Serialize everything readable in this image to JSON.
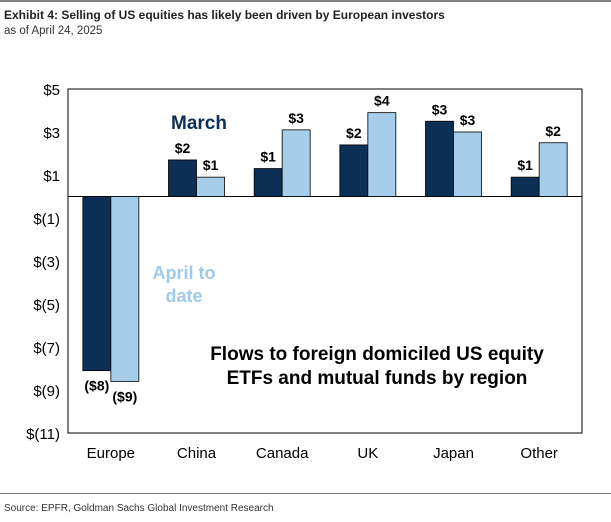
{
  "header": {
    "title": "Exhibit 4: Selling of US equities has likely been driven by European investors",
    "subtitle": "as of April 24, 2025"
  },
  "footer": {
    "source": "Source: EPFR, Goldman Sachs Global Investment Research"
  },
  "colors": {
    "march": "#0b2f55",
    "april": "#a6cdea",
    "march_label": "#0b2f55",
    "april_label": "#9fcaea"
  },
  "chart_data": {
    "type": "bar",
    "title": "Flows to foreign domiciled US equity ETFs and mutual funds by region",
    "title_lines": [
      "Flows to foreign domiciled US equity",
      "ETFs and mutual funds by region"
    ],
    "categories": [
      "Europe",
      "China",
      "Canada",
      "UK",
      "Japan",
      "Other"
    ],
    "series": [
      {
        "name": "March",
        "values": [
          -8.1,
          1.7,
          1.3,
          2.4,
          3.5,
          0.9
        ],
        "labels": [
          "($8)",
          "$2",
          "$1",
          "$2",
          "$3",
          "$1"
        ]
      },
      {
        "name": "April to date",
        "values": [
          -8.6,
          0.9,
          3.1,
          3.9,
          3.0,
          2.5
        ],
        "labels": [
          "($9)",
          "$1",
          "$3",
          "$4",
          "$3",
          "$2"
        ]
      }
    ],
    "legend_lines": {
      "march": [
        "March"
      ],
      "april": [
        "April to",
        "date"
      ]
    },
    "ylim": [
      -11,
      5
    ],
    "yticks": [
      5,
      3,
      1,
      -1,
      -3,
      -5,
      -7,
      -9,
      -11
    ],
    "ytick_labels": [
      "$5",
      "$3",
      "$1",
      "$(1)",
      "$(3)",
      "$(5)",
      "$(7)",
      "$(9)",
      "$(11)"
    ],
    "xlabel": "",
    "ylabel": "",
    "grid": false,
    "legend": "inline labels on chart"
  }
}
